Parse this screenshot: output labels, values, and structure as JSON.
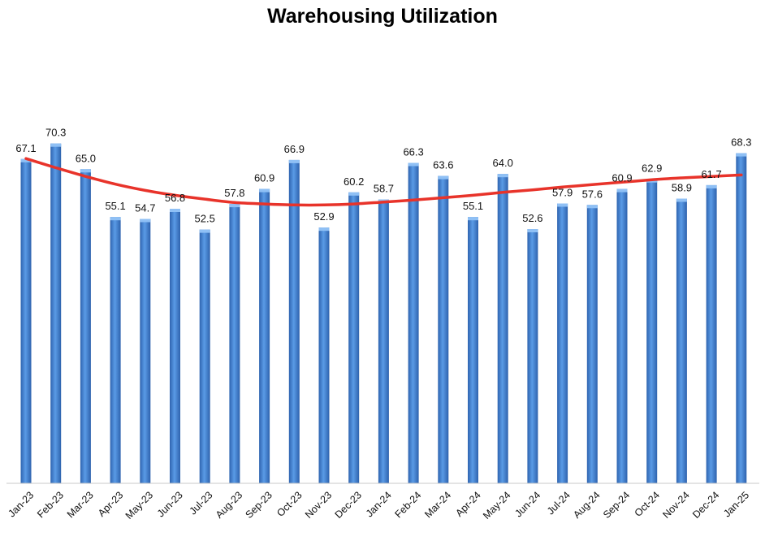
{
  "chart_data": {
    "type": "bar",
    "title": "Warehousing Utilization",
    "xlabel": "",
    "ylabel": "",
    "ylim": [
      0,
      75
    ],
    "grid": false,
    "legend": "none",
    "categories": [
      "Jan-23",
      "Feb-23",
      "Mar-23",
      "Apr-23",
      "May-23",
      "Jun-23",
      "Jul-23",
      "Aug-23",
      "Sep-23",
      "Oct-23",
      "Nov-23",
      "Dec-23",
      "Jan-24",
      "Feb-24",
      "Mar-24",
      "Apr-24",
      "May-24",
      "Jun-24",
      "Jul-24",
      "Aug-24",
      "Sep-24",
      "Oct-24",
      "Nov-24",
      "Dec-24",
      "Jan-25"
    ],
    "series": [
      {
        "values": [
          67.1,
          70.3,
          65.0,
          55.1,
          54.7,
          56.8,
          52.5,
          57.8,
          60.9,
          66.9,
          52.9,
          60.2,
          58.7,
          66.3,
          63.6,
          55.1,
          64.0,
          52.6,
          57.9,
          57.6,
          60.9,
          62.9,
          58.9,
          61.7,
          68.3
        ],
        "labels": [
          "67.1",
          "70.3",
          "65.0",
          "55.1",
          "54.7",
          "56.8",
          "52.5",
          "57.8",
          "60.9",
          "66.9",
          "52.9",
          "60.2",
          "58.7",
          "66.3",
          "63.6",
          "55.1",
          "64.0",
          "52.6",
          "57.9",
          "57.6",
          "60.9",
          "62.9",
          "58.9",
          "61.7",
          "68.3"
        ],
        "color": "#4a86d4"
      }
    ],
    "trendline": {
      "type": "polynomial",
      "color": "#e8332a",
      "values": [
        67.2,
        65.3,
        63.5,
        61.9,
        60.6,
        59.6,
        58.8,
        58.1,
        57.8,
        57.6,
        57.6,
        57.8,
        58.2,
        58.6,
        59.1,
        59.6,
        60.2,
        60.7,
        61.3,
        61.8,
        62.3,
        62.8,
        63.2,
        63.5,
        63.8
      ]
    }
  }
}
